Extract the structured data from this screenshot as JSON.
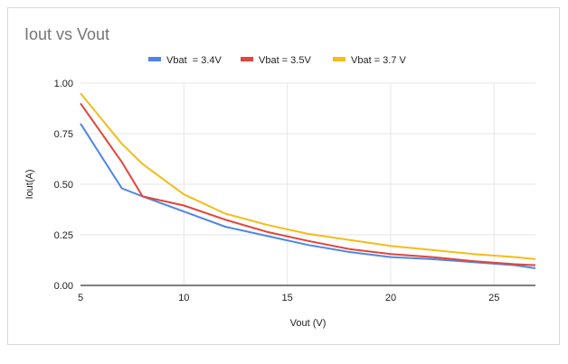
{
  "chart_data": {
    "type": "line",
    "title": "Iout vs Vout",
    "xlabel": "Vout (V)",
    "ylabel": "Iout(A)",
    "xlim": [
      5,
      27
    ],
    "ylim": [
      0,
      1
    ],
    "x_ticks": [
      "5",
      "10",
      "15",
      "20",
      "25"
    ],
    "y_ticks": [
      "0.00",
      "0.25",
      "0.50",
      "0.75",
      "1.00"
    ],
    "grid": true,
    "legend_position": "top",
    "series": [
      {
        "name": "Vbat  = 3.4V",
        "color": "#4f86e6",
        "x": [
          5,
          7,
          8,
          10,
          12,
          14,
          16,
          18,
          20,
          22,
          24,
          26,
          27
        ],
        "y": [
          0.8,
          0.48,
          0.44,
          0.365,
          0.29,
          0.245,
          0.2,
          0.165,
          0.14,
          0.13,
          0.115,
          0.1,
          0.085
        ]
      },
      {
        "name": "Vbat = 3.5V",
        "color": "#e0463c",
        "x": [
          5,
          7,
          8,
          10,
          12,
          14,
          16,
          18,
          20,
          22,
          24,
          26,
          27
        ],
        "y": [
          0.9,
          0.61,
          0.44,
          0.395,
          0.325,
          0.265,
          0.22,
          0.18,
          0.155,
          0.14,
          0.12,
          0.105,
          0.1
        ]
      },
      {
        "name": "Vbat = 3.7 V",
        "color": "#f5bc1a",
        "x": [
          5,
          7,
          8,
          10,
          12,
          14,
          16,
          18,
          20,
          22,
          24,
          26,
          27
        ],
        "y": [
          0.95,
          0.7,
          0.6,
          0.45,
          0.355,
          0.3,
          0.255,
          0.225,
          0.195,
          0.175,
          0.155,
          0.14,
          0.13
        ]
      }
    ]
  }
}
